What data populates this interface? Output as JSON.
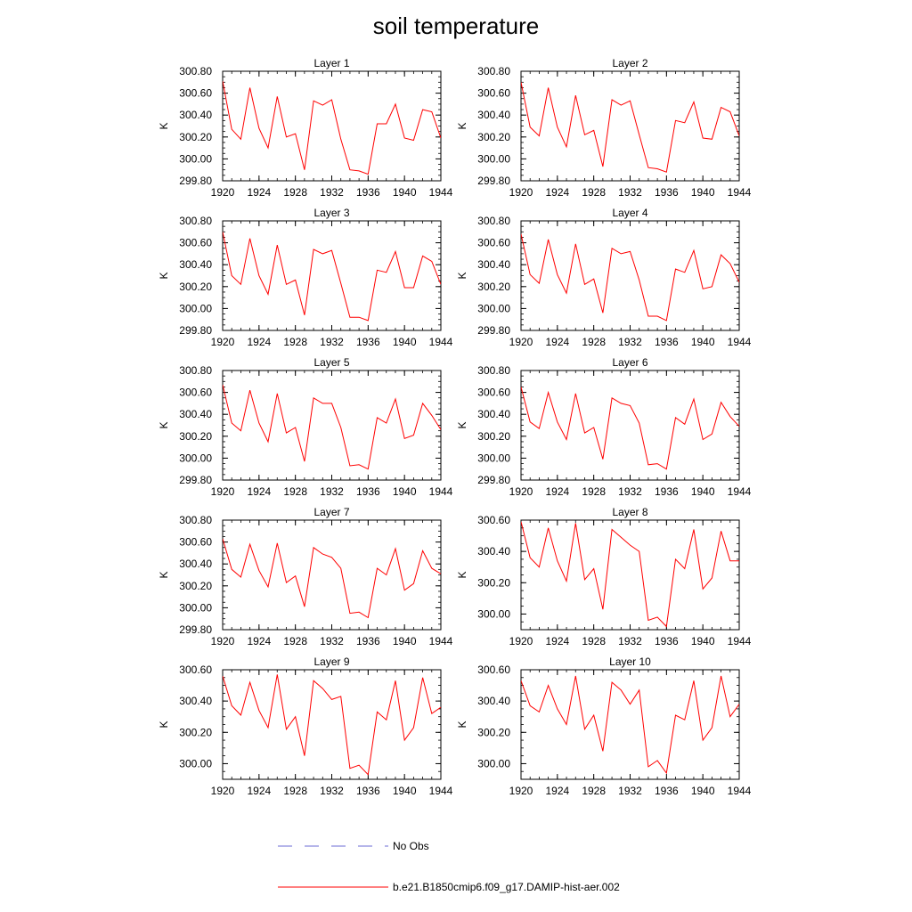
{
  "title": "soil temperature",
  "colors": {
    "model": "#ff0000",
    "obs": "#6b6bd6",
    "axis": "#000000"
  },
  "legend": [
    {
      "label": "No Obs",
      "style": "dashed",
      "color": "#6b6bd6"
    },
    {
      "label": "b.e21.B1850cmip6.f09_g17.DAMIP-hist-aer.002",
      "style": "solid",
      "color": "#ff0000"
    }
  ],
  "chart_data": [
    {
      "type": "line",
      "title": "Layer 1",
      "ylabel": "K",
      "xlim": [
        1920,
        1944
      ],
      "ylim": [
        299.8,
        300.8
      ],
      "xticks": [
        1920,
        1924,
        1928,
        1932,
        1936,
        1940,
        1944
      ],
      "yticks": [
        "299.80",
        "300.00",
        "300.20",
        "300.40",
        "300.60",
        "300.80"
      ],
      "x": [
        1920,
        1921,
        1922,
        1923,
        1924,
        1925,
        1926,
        1927,
        1928,
        1929,
        1930,
        1931,
        1932,
        1933,
        1934,
        1935,
        1936,
        1937,
        1938,
        1939,
        1940,
        1941,
        1942,
        1943,
        1944
      ],
      "series": [
        {
          "values": [
            300.71,
            300.27,
            300.18,
            300.65,
            300.28,
            300.1,
            300.57,
            300.2,
            300.23,
            299.9,
            300.53,
            300.49,
            300.54,
            300.18,
            299.9,
            299.89,
            299.86,
            300.32,
            300.32,
            300.5,
            300.19,
            300.17,
            300.45,
            300.43,
            300.19
          ]
        }
      ]
    },
    {
      "type": "line",
      "title": "Layer 2",
      "ylabel": "K",
      "xlim": [
        1920,
        1944
      ],
      "ylim": [
        299.8,
        300.8
      ],
      "xticks": [
        1920,
        1924,
        1928,
        1932,
        1936,
        1940,
        1944
      ],
      "yticks": [
        "299.80",
        "300.00",
        "300.20",
        "300.40",
        "300.60",
        "300.80"
      ],
      "x": [
        1920,
        1921,
        1922,
        1923,
        1924,
        1925,
        1926,
        1927,
        1928,
        1929,
        1930,
        1931,
        1932,
        1933,
        1934,
        1935,
        1936,
        1937,
        1938,
        1939,
        1940,
        1941,
        1942,
        1943,
        1944
      ],
      "series": [
        {
          "values": [
            300.7,
            300.29,
            300.21,
            300.65,
            300.29,
            300.11,
            300.58,
            300.22,
            300.26,
            299.93,
            300.54,
            300.49,
            300.53,
            300.22,
            299.92,
            299.91,
            299.88,
            300.35,
            300.33,
            300.52,
            300.19,
            300.18,
            300.47,
            300.43,
            300.21
          ]
        }
      ]
    },
    {
      "type": "line",
      "title": "Layer 3",
      "ylabel": "K",
      "xlim": [
        1920,
        1944
      ],
      "ylim": [
        299.8,
        300.8
      ],
      "xticks": [
        1920,
        1924,
        1928,
        1932,
        1936,
        1940,
        1944
      ],
      "yticks": [
        "299.80",
        "300.00",
        "300.20",
        "300.40",
        "300.60",
        "300.80"
      ],
      "x": [
        1920,
        1921,
        1922,
        1923,
        1924,
        1925,
        1926,
        1927,
        1928,
        1929,
        1930,
        1931,
        1932,
        1933,
        1934,
        1935,
        1936,
        1937,
        1938,
        1939,
        1940,
        1941,
        1942,
        1943,
        1944
      ],
      "series": [
        {
          "values": [
            300.7,
            300.3,
            300.22,
            300.64,
            300.3,
            300.13,
            300.58,
            300.22,
            300.26,
            299.94,
            300.54,
            300.5,
            300.53,
            300.23,
            299.92,
            299.92,
            299.89,
            300.35,
            300.33,
            300.52,
            300.19,
            300.19,
            300.48,
            300.43,
            300.22
          ]
        }
      ]
    },
    {
      "type": "line",
      "title": "Layer 4",
      "ylabel": "K",
      "xlim": [
        1920,
        1944
      ],
      "ylim": [
        299.8,
        300.8
      ],
      "xticks": [
        1920,
        1924,
        1928,
        1932,
        1936,
        1940,
        1944
      ],
      "yticks": [
        "299.80",
        "300.00",
        "300.20",
        "300.40",
        "300.60",
        "300.80"
      ],
      "x": [
        1920,
        1921,
        1922,
        1923,
        1924,
        1925,
        1926,
        1927,
        1928,
        1929,
        1930,
        1931,
        1932,
        1933,
        1934,
        1935,
        1936,
        1937,
        1938,
        1939,
        1940,
        1941,
        1942,
        1943,
        1944
      ],
      "series": [
        {
          "values": [
            300.68,
            300.31,
            300.23,
            300.63,
            300.31,
            300.14,
            300.59,
            300.22,
            300.27,
            299.96,
            300.55,
            300.5,
            300.52,
            300.26,
            299.93,
            299.93,
            299.89,
            300.36,
            300.33,
            300.53,
            300.18,
            300.2,
            300.49,
            300.41,
            300.24
          ]
        }
      ]
    },
    {
      "type": "line",
      "title": "Layer 5",
      "ylabel": "K",
      "xlim": [
        1920,
        1944
      ],
      "ylim": [
        299.8,
        300.8
      ],
      "xticks": [
        1920,
        1924,
        1928,
        1932,
        1936,
        1940,
        1944
      ],
      "yticks": [
        "299.80",
        "300.00",
        "300.20",
        "300.40",
        "300.60",
        "300.80"
      ],
      "x": [
        1920,
        1921,
        1922,
        1923,
        1924,
        1925,
        1926,
        1927,
        1928,
        1929,
        1930,
        1931,
        1932,
        1933,
        1934,
        1935,
        1936,
        1937,
        1938,
        1939,
        1940,
        1941,
        1942,
        1943,
        1944
      ],
      "series": [
        {
          "values": [
            300.67,
            300.32,
            300.25,
            300.62,
            300.32,
            300.15,
            300.59,
            300.23,
            300.28,
            299.97,
            300.55,
            300.5,
            300.5,
            300.28,
            299.93,
            299.94,
            299.9,
            300.37,
            300.32,
            300.54,
            300.18,
            300.21,
            300.5,
            300.39,
            300.26
          ]
        }
      ]
    },
    {
      "type": "line",
      "title": "Layer 6",
      "ylabel": "K",
      "xlim": [
        1920,
        1944
      ],
      "ylim": [
        299.8,
        300.8
      ],
      "xticks": [
        1920,
        1924,
        1928,
        1932,
        1936,
        1940,
        1944
      ],
      "yticks": [
        "299.80",
        "300.00",
        "300.20",
        "300.40",
        "300.60",
        "300.80"
      ],
      "x": [
        1920,
        1921,
        1922,
        1923,
        1924,
        1925,
        1926,
        1927,
        1928,
        1929,
        1930,
        1931,
        1932,
        1933,
        1934,
        1935,
        1936,
        1937,
        1938,
        1939,
        1940,
        1941,
        1942,
        1943,
        1944
      ],
      "series": [
        {
          "values": [
            300.65,
            300.33,
            300.27,
            300.6,
            300.33,
            300.17,
            300.59,
            300.23,
            300.28,
            299.99,
            300.55,
            300.5,
            300.48,
            300.32,
            299.94,
            299.95,
            299.9,
            300.37,
            300.31,
            300.54,
            300.17,
            300.22,
            300.51,
            300.38,
            300.29
          ]
        }
      ]
    },
    {
      "type": "line",
      "title": "Layer 7",
      "ylabel": "K",
      "xlim": [
        1920,
        1944
      ],
      "ylim": [
        299.8,
        300.8
      ],
      "xticks": [
        1920,
        1924,
        1928,
        1932,
        1936,
        1940,
        1944
      ],
      "yticks": [
        "299.80",
        "300.00",
        "300.20",
        "300.40",
        "300.60",
        "300.80"
      ],
      "x": [
        1920,
        1921,
        1922,
        1923,
        1924,
        1925,
        1926,
        1927,
        1928,
        1929,
        1930,
        1931,
        1932,
        1933,
        1934,
        1935,
        1936,
        1937,
        1938,
        1939,
        1940,
        1941,
        1942,
        1943,
        1944
      ],
      "series": [
        {
          "values": [
            300.63,
            300.35,
            300.28,
            300.58,
            300.34,
            300.19,
            300.59,
            300.23,
            300.29,
            300.01,
            300.55,
            300.49,
            300.46,
            300.36,
            299.95,
            299.96,
            299.91,
            300.36,
            300.3,
            300.54,
            300.16,
            300.22,
            300.52,
            300.36,
            300.31
          ]
        }
      ]
    },
    {
      "type": "line",
      "title": "Layer 8",
      "ylabel": "K",
      "xlim": [
        1920,
        1944
      ],
      "ylim": [
        299.9,
        300.6
      ],
      "xticks": [
        1920,
        1924,
        1928,
        1932,
        1936,
        1940,
        1944
      ],
      "yticks": [
        "300.00",
        "300.20",
        "300.40",
        "300.60"
      ],
      "x": [
        1920,
        1921,
        1922,
        1923,
        1924,
        1925,
        1926,
        1927,
        1928,
        1929,
        1930,
        1931,
        1932,
        1933,
        1934,
        1935,
        1936,
        1937,
        1938,
        1939,
        1940,
        1941,
        1942,
        1943,
        1944
      ],
      "series": [
        {
          "values": [
            300.59,
            300.36,
            300.3,
            300.55,
            300.34,
            300.21,
            300.58,
            300.22,
            300.29,
            300.03,
            300.54,
            300.49,
            300.44,
            300.4,
            299.96,
            299.98,
            299.92,
            300.35,
            300.29,
            300.54,
            300.16,
            300.23,
            300.53,
            300.34,
            300.34
          ]
        }
      ]
    },
    {
      "type": "line",
      "title": "Layer 9",
      "ylabel": "K",
      "xlim": [
        1920,
        1944
      ],
      "ylim": [
        299.9,
        300.6
      ],
      "xticks": [
        1920,
        1924,
        1928,
        1932,
        1936,
        1940,
        1944
      ],
      "yticks": [
        "300.00",
        "300.20",
        "300.40",
        "300.60"
      ],
      "x": [
        1920,
        1921,
        1922,
        1923,
        1924,
        1925,
        1926,
        1927,
        1928,
        1929,
        1930,
        1931,
        1932,
        1933,
        1934,
        1935,
        1936,
        1937,
        1938,
        1939,
        1940,
        1941,
        1942,
        1943,
        1944
      ],
      "series": [
        {
          "values": [
            300.56,
            300.37,
            300.31,
            300.52,
            300.34,
            300.23,
            300.57,
            300.22,
            300.3,
            300.05,
            300.53,
            300.48,
            300.41,
            300.43,
            299.97,
            299.99,
            299.93,
            300.33,
            300.28,
            300.53,
            300.15,
            300.23,
            300.55,
            300.32,
            300.36
          ]
        }
      ]
    },
    {
      "type": "line",
      "title": "Layer 10",
      "ylabel": "K",
      "xlim": [
        1920,
        1944
      ],
      "ylim": [
        299.9,
        300.6
      ],
      "xticks": [
        1920,
        1924,
        1928,
        1932,
        1936,
        1940,
        1944
      ],
      "yticks": [
        "300.00",
        "300.20",
        "300.40",
        "300.60"
      ],
      "x": [
        1920,
        1921,
        1922,
        1923,
        1924,
        1925,
        1926,
        1927,
        1928,
        1929,
        1930,
        1931,
        1932,
        1933,
        1934,
        1935,
        1936,
        1937,
        1938,
        1939,
        1940,
        1941,
        1942,
        1943,
        1944
      ],
      "series": [
        {
          "values": [
            300.53,
            300.37,
            300.33,
            300.5,
            300.35,
            300.25,
            300.56,
            300.22,
            300.31,
            300.08,
            300.52,
            300.47,
            300.38,
            300.47,
            299.98,
            300.02,
            299.94,
            300.31,
            300.28,
            300.53,
            300.15,
            300.23,
            300.56,
            300.3,
            300.38
          ]
        }
      ]
    }
  ]
}
